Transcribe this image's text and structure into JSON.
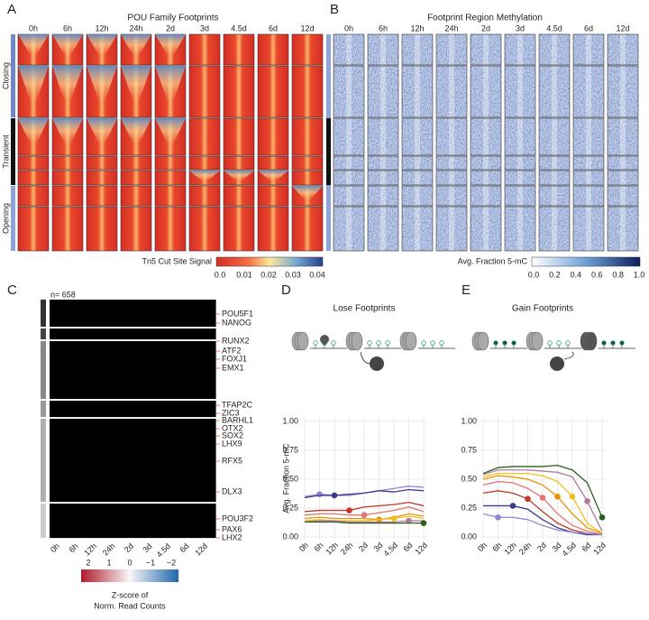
{
  "panels": {
    "A": {
      "label": "A",
      "title": "POU Family Footprints",
      "columns": [
        "0h",
        "6h",
        "12h",
        "24h",
        "2d",
        "3d",
        "4.5d",
        "6d",
        "12d"
      ],
      "groups": [
        "Closing",
        "Transient",
        "Opening"
      ],
      "colorbar_title": "Tn5 Cut Site Signal",
      "colorbar_ticks": [
        "0.0",
        "0.01",
        "0.02",
        "0.03",
        "0.04"
      ]
    },
    "B": {
      "label": "B",
      "title": "Footprint Region Methylation",
      "columns": [
        "0h",
        "6h",
        "12h",
        "24h",
        "2d",
        "3d",
        "4.5d",
        "6d",
        "12d"
      ],
      "colorbar_title": "Avg. Fraction 5-mC",
      "colorbar_ticks": [
        "0.0",
        "0.2",
        "0.4",
        "0.6",
        "0.8",
        "1.0"
      ]
    },
    "C": {
      "label": "C",
      "count": "n= 658",
      "columns": [
        "0h",
        "6h",
        "12h",
        "24h",
        "2d",
        "3d",
        "4.5d",
        "6d",
        "12d"
      ],
      "genes": [
        "POU5F1",
        "NANOG",
        "RUNX2",
        "ATF2",
        "FOXJ1",
        "EMX1",
        "TFAP2C",
        "ZIC3",
        "BARHL1",
        "OTX2",
        "SOX2",
        "LHX9",
        "RFX5",
        "DLX3",
        "POU3F2",
        "PAX6",
        "LHX2"
      ],
      "colorbar_ticks": [
        "2",
        "1",
        "0",
        "−1",
        "−2"
      ],
      "colorbar_title": [
        "Z-score of",
        "Norm. Read Counts"
      ]
    },
    "D": {
      "label": "D"
    },
    "E": {
      "label": "E"
    }
  },
  "chart_data": [
    {
      "type": "line",
      "title": "Lose Footprints",
      "y_label": "Avg. Fraction 5-mC",
      "categories": [
        "0h",
        "6h",
        "12h",
        "24h",
        "2d",
        "3d",
        "4.5d",
        "6d",
        "12d"
      ],
      "ylim": [
        0,
        1
      ],
      "yticks": [
        {
          "value": 0,
          "label": "0.00"
        },
        {
          "value": 0.25,
          "label": "0.25"
        },
        {
          "value": 0.5,
          "label": "0.50"
        },
        {
          "value": 0.75,
          "label": "0.75"
        },
        {
          "value": 1,
          "label": "1.00"
        }
      ],
      "grid": true,
      "series": [
        {
          "color": "#8f88d0",
          "highlight": "6h",
          "values": [
            0.35,
            0.37,
            0.36,
            0.36,
            0.38,
            0.4,
            0.42,
            0.44,
            0.43
          ]
        },
        {
          "color": "#3b3b8f",
          "highlight": "12h",
          "values": [
            0.34,
            0.36,
            0.36,
            0.37,
            0.38,
            0.4,
            0.39,
            0.41,
            0.4
          ]
        },
        {
          "color": "#c0392b",
          "highlight": "24h",
          "values": [
            0.22,
            0.23,
            0.23,
            0.23,
            0.26,
            0.27,
            0.28,
            0.3,
            0.27
          ]
        },
        {
          "color": "#e57373",
          "highlight": "2d",
          "values": [
            0.19,
            0.2,
            0.2,
            0.19,
            0.19,
            0.21,
            0.23,
            0.26,
            0.22
          ]
        },
        {
          "color": "#e69500",
          "highlight": "3d",
          "values": [
            0.16,
            0.17,
            0.16,
            0.16,
            0.16,
            0.15,
            0.17,
            0.2,
            0.18
          ]
        },
        {
          "color": "#f0c020",
          "highlight": "4.5d",
          "values": [
            0.14,
            0.15,
            0.14,
            0.14,
            0.14,
            0.15,
            0.16,
            0.18,
            0.16
          ]
        },
        {
          "color": "#b07aa1",
          "highlight": "6d",
          "values": [
            0.13,
            0.14,
            0.14,
            0.13,
            0.13,
            0.13,
            0.13,
            0.14,
            0.14
          ]
        },
        {
          "color": "#2e5e1e",
          "highlight": "12d",
          "values": [
            0.13,
            0.13,
            0.13,
            0.12,
            0.12,
            0.12,
            0.12,
            0.12,
            0.12
          ]
        }
      ]
    },
    {
      "type": "line",
      "title": "Gain Footprints",
      "categories": [
        "0h",
        "6h",
        "12h",
        "24h",
        "2d",
        "3d",
        "4.5d",
        "6d",
        "12d"
      ],
      "ylim": [
        0,
        1
      ],
      "yticks": [
        {
          "value": 0,
          "label": "0.00"
        },
        {
          "value": 0.25,
          "label": "0.25"
        },
        {
          "value": 0.5,
          "label": "0.50"
        },
        {
          "value": 0.75,
          "label": "0.75"
        },
        {
          "value": 1,
          "label": "1.00"
        }
      ],
      "grid": true,
      "series": [
        {
          "color": "#2e5e1e",
          "highlight": "12d",
          "values": [
            0.55,
            0.6,
            0.61,
            0.61,
            0.61,
            0.62,
            0.58,
            0.47,
            0.17
          ]
        },
        {
          "color": "#b07aa1",
          "highlight": "6d",
          "values": [
            0.54,
            0.58,
            0.58,
            0.58,
            0.57,
            0.56,
            0.52,
            0.31,
            0.05
          ]
        },
        {
          "color": "#f0c020",
          "highlight": "4.5d",
          "values": [
            0.52,
            0.55,
            0.55,
            0.55,
            0.53,
            0.48,
            0.35,
            0.12,
            0.03
          ]
        },
        {
          "color": "#e69500",
          "highlight": "3d",
          "values": [
            0.5,
            0.53,
            0.52,
            0.5,
            0.45,
            0.35,
            0.2,
            0.08,
            0.03
          ]
        },
        {
          "color": "#e57373",
          "highlight": "2d",
          "values": [
            0.45,
            0.48,
            0.47,
            0.42,
            0.34,
            0.2,
            0.1,
            0.05,
            0.02
          ]
        },
        {
          "color": "#c0392b",
          "highlight": "24h",
          "values": [
            0.38,
            0.4,
            0.38,
            0.33,
            0.22,
            0.12,
            0.06,
            0.03,
            0.02
          ]
        },
        {
          "color": "#3b3b8f",
          "highlight": "12h",
          "values": [
            0.27,
            0.27,
            0.27,
            0.24,
            0.15,
            0.08,
            0.04,
            0.02,
            0.02
          ]
        },
        {
          "color": "#8f88d0",
          "highlight": "6h",
          "values": [
            0.2,
            0.17,
            0.17,
            0.15,
            0.1,
            0.06,
            0.04,
            0.03,
            0.02
          ]
        }
      ]
    }
  ]
}
